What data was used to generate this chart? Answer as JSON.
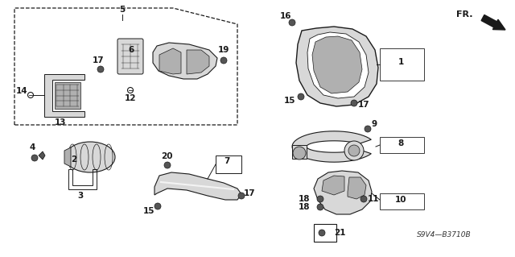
{
  "bg_color": "#ffffff",
  "diagram_code": "S9V4—B3710B",
  "fr_label": "FR.",
  "line_color": "#1a1a1a",
  "gray_fill": "#b0b0b0",
  "dark_fill": "#555555",
  "light_fill": "#d8d8d8"
}
